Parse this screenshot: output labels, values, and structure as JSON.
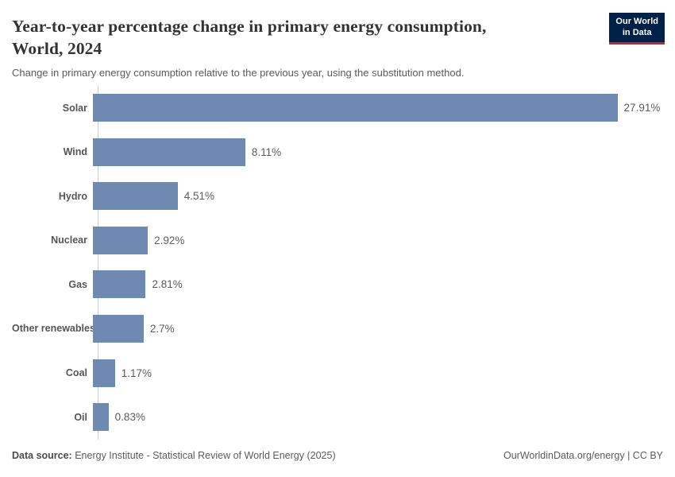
{
  "header": {
    "title": "Year-to-year percentage change in primary energy consumption, World, 2024",
    "subtitle": "Change in primary energy consumption relative to the previous year, using the substitution method.",
    "logo": {
      "line1": "Our World",
      "line2": "in Data",
      "bg_color": "#002147",
      "accent_color": "#c5232d",
      "text_color": "#ffffff"
    }
  },
  "chart_data": {
    "type": "bar",
    "orientation": "horizontal",
    "title": "Year-to-year percentage change in primary energy consumption, World, 2024",
    "xlabel": "",
    "ylabel": "",
    "categories": [
      "Solar",
      "Wind",
      "Hydro",
      "Nuclear",
      "Gas",
      "Other renewables",
      "Coal",
      "Oil"
    ],
    "values": [
      27.91,
      8.11,
      4.51,
      2.92,
      2.81,
      2.7,
      1.17,
      0.83
    ],
    "value_labels": [
      "27.91%",
      "8.11%",
      "4.51%",
      "2.92%",
      "2.81%",
      "2.7%",
      "1.17%",
      "0.83%"
    ],
    "unit": "%",
    "xlim": [
      0,
      30
    ],
    "grid": false,
    "legend": false,
    "bar_color": "#6e8ab2",
    "axis_color": "#cccccc"
  },
  "footer": {
    "source_label": "Data source:",
    "source_text": "Energy Institute - Statistical Review of World Energy (2025)",
    "rights": "OurWorldinData.org/energy | CC BY"
  }
}
